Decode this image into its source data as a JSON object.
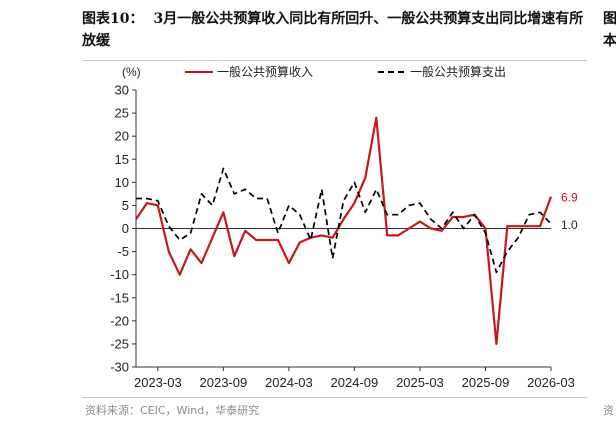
{
  "title": {
    "label": "图表10：",
    "text": "3月一般公共预算收入同比有所回升、一般公共预算支出同比增速有所放缓"
  },
  "source": "资料来源：CEIC，Wind，华泰研究",
  "sidebar": {
    "title_fragment": "图\n本",
    "source_fragment": "资"
  },
  "colors": {
    "income": "#C8161D",
    "expenditure": "#000000",
    "axis": "#333333"
  },
  "chart_data": {
    "type": "line",
    "ylabel": "(%)",
    "ylim": [
      -30,
      30
    ],
    "yticks": [
      30,
      25,
      20,
      15,
      10,
      5,
      0,
      -5,
      -10,
      -15,
      -20,
      -25,
      -30
    ],
    "xticks": [
      "2023-03",
      "2023-09",
      "2024-03",
      "2024-09",
      "2025-03",
      "2025-09",
      "2026-03"
    ],
    "x": [
      "2023-01",
      "2023-02",
      "2023-03",
      "2023-04",
      "2023-05",
      "2023-06",
      "2023-07",
      "2023-08",
      "2023-09",
      "2023-10",
      "2023-11",
      "2023-12",
      "2024-01",
      "2024-02",
      "2024-03",
      "2024-04",
      "2024-05",
      "2024-06",
      "2024-07",
      "2024-08",
      "2024-09",
      "2024-10",
      "2024-11",
      "2024-12",
      "2025-01",
      "2025-02",
      "2025-03",
      "2025-04",
      "2025-05",
      "2025-06",
      "2025-07",
      "2025-08",
      "2025-09",
      "2025-10",
      "2025-11",
      "2025-12",
      "2026-01",
      "2026-02",
      "2026-03"
    ],
    "series": [
      {
        "name": "一般公共预算收入",
        "style": "solid",
        "values": [
          2.0,
          5.5,
          5.0,
          -5.0,
          -10.0,
          -4.5,
          -7.5,
          -2.0,
          3.5,
          -6.0,
          -0.5,
          -2.5,
          -2.5,
          -2.5,
          -7.5,
          -3.0,
          -2.0,
          -1.5,
          -2.0,
          2.0,
          5.5,
          11.0,
          24.0,
          -1.5,
          -1.5,
          0.0,
          1.5,
          0.0,
          -0.5,
          2.5,
          2.5,
          3.0,
          0.0,
          -25.0,
          0.5,
          0.5,
          0.5,
          0.5,
          6.9
        ],
        "end_label": "6.9"
      },
      {
        "name": "一般公共预算支出",
        "style": "dashed",
        "values": [
          6.5,
          6.5,
          6.0,
          0.5,
          -2.5,
          -1.0,
          7.5,
          5.0,
          13.0,
          7.5,
          8.5,
          6.5,
          6.5,
          -1.0,
          5.0,
          3.0,
          -2.5,
          8.5,
          -6.5,
          6.0,
          10.0,
          3.5,
          8.5,
          3.0,
          3.0,
          5.0,
          5.5,
          2.0,
          0.0,
          3.5,
          0.0,
          3.0,
          -1.0,
          -9.5,
          -5.0,
          -2.0,
          3.0,
          3.5,
          1.0
        ],
        "end_label": "1.0"
      }
    ],
    "legend_position": "top"
  }
}
